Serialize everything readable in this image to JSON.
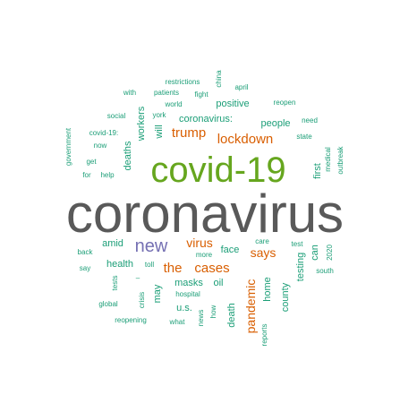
{
  "palette": {
    "gray": "#595959",
    "green": "#66a61e",
    "purple": "#7570b3",
    "orange": "#d95f02",
    "teal": "#1b9e77"
  },
  "words": [
    {
      "text": "coronavirus",
      "color": "gray"
    },
    {
      "text": "covid-19",
      "color": "green"
    },
    {
      "text": "new",
      "color": "purple"
    },
    {
      "text": "the",
      "color": "orange"
    },
    {
      "text": "cases",
      "color": "orange"
    },
    {
      "text": "lockdown",
      "color": "orange"
    },
    {
      "text": "trump",
      "color": "orange"
    },
    {
      "text": "virus",
      "color": "orange"
    },
    {
      "text": "says",
      "color": "orange"
    },
    {
      "text": "pandemic",
      "color": "orange"
    },
    {
      "text": "people",
      "color": "teal"
    },
    {
      "text": "positive",
      "color": "teal"
    },
    {
      "text": "coronavirus:",
      "color": "teal"
    },
    {
      "text": "workers",
      "color": "teal"
    },
    {
      "text": "will",
      "color": "teal"
    },
    {
      "text": "deaths",
      "color": "teal"
    },
    {
      "text": "first",
      "color": "teal"
    },
    {
      "text": "amid",
      "color": "teal"
    },
    {
      "text": "health",
      "color": "teal"
    },
    {
      "text": "face",
      "color": "teal"
    },
    {
      "text": "masks",
      "color": "teal"
    },
    {
      "text": "oil",
      "color": "teal"
    },
    {
      "text": "home",
      "color": "teal"
    },
    {
      "text": "death",
      "color": "teal"
    },
    {
      "text": "county",
      "color": "teal"
    },
    {
      "text": "testing",
      "color": "teal"
    },
    {
      "text": "can",
      "color": "teal"
    },
    {
      "text": "u.s.",
      "color": "teal"
    },
    {
      "text": "may",
      "color": "teal"
    },
    {
      "text": "restrictions",
      "color": "teal"
    },
    {
      "text": "china",
      "color": "teal"
    },
    {
      "text": "april",
      "color": "teal"
    },
    {
      "text": "with",
      "color": "teal"
    },
    {
      "text": "patients",
      "color": "teal"
    },
    {
      "text": "fight",
      "color": "teal"
    },
    {
      "text": "world",
      "color": "teal"
    },
    {
      "text": "reopen",
      "color": "teal"
    },
    {
      "text": "social",
      "color": "teal"
    },
    {
      "text": "york",
      "color": "teal"
    },
    {
      "text": "need",
      "color": "teal"
    },
    {
      "text": "government",
      "color": "teal"
    },
    {
      "text": "covid-19:",
      "color": "teal"
    },
    {
      "text": "state",
      "color": "teal"
    },
    {
      "text": "now",
      "color": "teal"
    },
    {
      "text": "medical",
      "color": "teal"
    },
    {
      "text": "outbreak",
      "color": "teal"
    },
    {
      "text": "get",
      "color": "teal"
    },
    {
      "text": "for",
      "color": "teal"
    },
    {
      "text": "help",
      "color": "teal"
    },
    {
      "text": "back",
      "color": "teal"
    },
    {
      "text": "care",
      "color": "teal"
    },
    {
      "text": "test",
      "color": "teal"
    },
    {
      "text": "2020",
      "color": "teal"
    },
    {
      "text": "more",
      "color": "teal"
    },
    {
      "text": "say",
      "color": "teal"
    },
    {
      "text": "toll",
      "color": "teal"
    },
    {
      "text": "south",
      "color": "teal"
    },
    {
      "text": "tests",
      "color": "teal"
    },
    {
      "text": "–",
      "color": "teal"
    },
    {
      "text": "crisis",
      "color": "teal"
    },
    {
      "text": "hospital",
      "color": "teal"
    },
    {
      "text": "global",
      "color": "teal"
    },
    {
      "text": "how",
      "color": "teal"
    },
    {
      "text": "news",
      "color": "teal"
    },
    {
      "text": "reopening",
      "color": "teal"
    },
    {
      "text": "what",
      "color": "teal"
    },
    {
      "text": "reports",
      "color": "teal"
    }
  ]
}
